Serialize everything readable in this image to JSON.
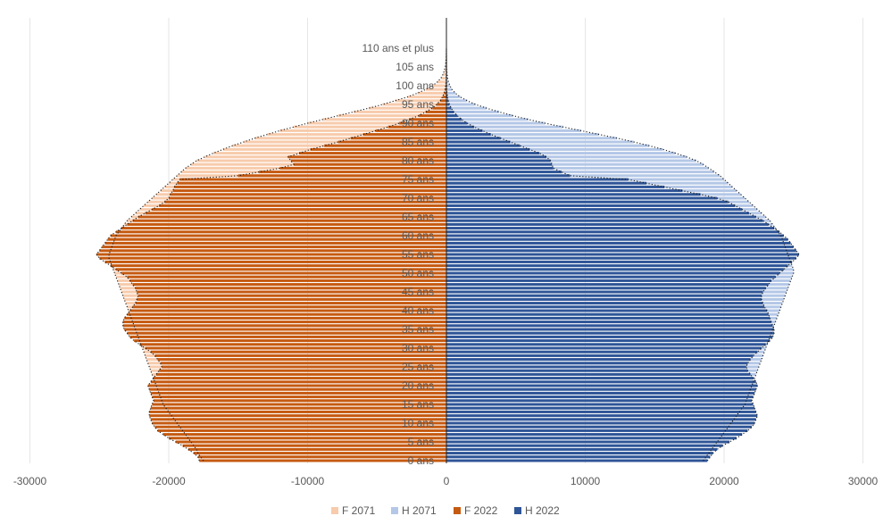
{
  "chart_data": {
    "type": "bar",
    "orientation": "horizontal",
    "title": "",
    "xlabel": "",
    "ylabel": "",
    "xlim": [
      -30000,
      30000
    ],
    "x_ticks": [
      "-30000",
      "-20000",
      "-10000",
      "0",
      "10000",
      "20000",
      "30000"
    ],
    "x_tick_values": [
      -30000,
      -20000,
      -10000,
      0,
      10000,
      20000,
      30000
    ],
    "grid": "vertical",
    "legend_position": "bottom",
    "age_labels": [
      "0 ans",
      "5 ans",
      "10 ans",
      "15 ans",
      "20 ans",
      "25 ans",
      "30 ans",
      "35 ans",
      "40 ans",
      "45 ans",
      "50 ans",
      "55 ans",
      "60 ans",
      "65 ans",
      "70 ans",
      "75 ans",
      "80 ans",
      "85 ans",
      "90 ans",
      "95 ans",
      "100 ans",
      "105 ans",
      "110 ans et plus"
    ],
    "age_label_values": [
      0,
      5,
      10,
      15,
      20,
      25,
      30,
      35,
      40,
      45,
      50,
      55,
      60,
      65,
      70,
      75,
      80,
      85,
      90,
      95,
      100,
      105,
      110
    ],
    "series": [
      {
        "name": "F 2071",
        "color": "#f7cbac",
        "values": [
          -17500,
          -17700,
          -17900,
          -18000,
          -18200,
          -18400,
          -18600,
          -18800,
          -19000,
          -19200,
          -19400,
          -19600,
          -19800,
          -20000,
          -20200,
          -20400,
          -20500,
          -20600,
          -20700,
          -20800,
          -20900,
          -21000,
          -21100,
          -21200,
          -21300,
          -21400,
          -21500,
          -21600,
          -21700,
          -21800,
          -21900,
          -22000,
          -22100,
          -22200,
          -22300,
          -22400,
          -22500,
          -22600,
          -22700,
          -22800,
          -22900,
          -23000,
          -23100,
          -23200,
          -23300,
          -23400,
          -23500,
          -23600,
          -23700,
          -23800,
          -23900,
          -24000,
          -24100,
          -24200,
          -24300,
          -24300,
          -24200,
          -24100,
          -24000,
          -23900,
          -23800,
          -23600,
          -23400,
          -23200,
          -23000,
          -22700,
          -22400,
          -22100,
          -21800,
          -21500,
          -21200,
          -20900,
          -20600,
          -20300,
          -20000,
          -19700,
          -19400,
          -19100,
          -18800,
          -18400,
          -18000,
          -17400,
          -16800,
          -16100,
          -15400,
          -14600,
          -13800,
          -12900,
          -12000,
          -11000,
          -10000,
          -8900,
          -7800,
          -6700,
          -5600,
          -4600,
          -3700,
          -2800,
          -2100,
          -1500,
          -1000,
          -650,
          -400,
          -250,
          -150,
          -90,
          -50,
          -30,
          -15,
          -8,
          -4
        ]
      },
      {
        "name": "H 2071",
        "color": "#b4c7e7",
        "values": [
          18500,
          18700,
          18900,
          19100,
          19300,
          19500,
          19700,
          19900,
          20100,
          20300,
          20500,
          20700,
          20900,
          21100,
          21300,
          21500,
          21600,
          21700,
          21800,
          21900,
          22000,
          22100,
          22200,
          22300,
          22400,
          22500,
          22600,
          22700,
          22800,
          22900,
          23000,
          23100,
          23200,
          23300,
          23400,
          23500,
          23600,
          23700,
          23800,
          23900,
          24000,
          24100,
          24200,
          24300,
          24400,
          24500,
          24600,
          24700,
          24800,
          24900,
          25000,
          25000,
          24900,
          24800,
          24700,
          24600,
          24500,
          24400,
          24300,
          24200,
          24100,
          23900,
          23700,
          23500,
          23300,
          23000,
          22700,
          22400,
          22100,
          21800,
          21500,
          21200,
          20900,
          20600,
          20300,
          20000,
          19700,
          19300,
          18900,
          18500,
          18000,
          17300,
          16500,
          15600,
          14600,
          13500,
          12300,
          11000,
          9700,
          8400,
          7100,
          5900,
          4800,
          3800,
          2900,
          2100,
          1500,
          1000,
          650,
          400,
          250,
          150,
          90,
          50,
          30,
          15,
          8,
          4,
          2,
          1,
          1
        ]
      },
      {
        "name": "F 2022",
        "color": "#c55a11",
        "values": [
          -17800,
          -17900,
          -18200,
          -18600,
          -19000,
          -19500,
          -20000,
          -20400,
          -20800,
          -21000,
          -21200,
          -21300,
          -21400,
          -21400,
          -21300,
          -21200,
          -21100,
          -21200,
          -21300,
          -21400,
          -21500,
          -21300,
          -21100,
          -20900,
          -20700,
          -20500,
          -20600,
          -20800,
          -21000,
          -21300,
          -21700,
          -22100,
          -22500,
          -22800,
          -23000,
          -23200,
          -23300,
          -23300,
          -23200,
          -23000,
          -22800,
          -22600,
          -22400,
          -22300,
          -22200,
          -22300,
          -22400,
          -22600,
          -22800,
          -23000,
          -23400,
          -23800,
          -24200,
          -24600,
          -25000,
          -25200,
          -25000,
          -24800,
          -24600,
          -24400,
          -24200,
          -23800,
          -23400,
          -23000,
          -22600,
          -22200,
          -21700,
          -21200,
          -20700,
          -20300,
          -20000,
          -19900,
          -19700,
          -19600,
          -19400,
          -19200,
          -15000,
          -13500,
          -12000,
          -11000,
          -11200,
          -11400,
          -10600,
          -9800,
          -8800,
          -7800,
          -6900,
          -6000,
          -5100,
          -4200,
          -3400,
          -2700,
          -2000,
          -1500,
          -1000,
          -700,
          -450,
          -280,
          -170,
          -100,
          -60,
          -30,
          -15,
          -8,
          -4,
          -2,
          -1,
          -1,
          -1,
          0,
          0
        ]
      },
      {
        "name": "H 2022",
        "color": "#2f5597",
        "values": [
          18800,
          19000,
          19200,
          19500,
          19900,
          20400,
          20900,
          21300,
          21700,
          22000,
          22200,
          22300,
          22400,
          22300,
          22200,
          22100,
          22000,
          22100,
          22200,
          22300,
          22400,
          22300,
          22100,
          21900,
          21700,
          21600,
          21700,
          21900,
          22100,
          22400,
          22700,
          23000,
          23300,
          23500,
          23600,
          23600,
          23500,
          23400,
          23300,
          23200,
          23100,
          22900,
          22800,
          22700,
          22700,
          22800,
          23000,
          23200,
          23400,
          23700,
          24000,
          24300,
          24600,
          24900,
          25200,
          25400,
          25200,
          25000,
          24800,
          24600,
          24300,
          24000,
          23600,
          23200,
          22800,
          22300,
          21800,
          21300,
          20800,
          20300,
          19500,
          18300,
          17000,
          15700,
          14400,
          13100,
          8900,
          8300,
          7700,
          7600,
          7500,
          7200,
          6700,
          6000,
          5300,
          4600,
          3900,
          3200,
          2600,
          2000,
          1500,
          1100,
          780,
          530,
          350,
          220,
          140,
          80,
          45,
          25,
          13,
          7,
          3,
          2,
          1,
          1,
          0,
          0,
          0,
          0,
          0
        ]
      }
    ]
  }
}
